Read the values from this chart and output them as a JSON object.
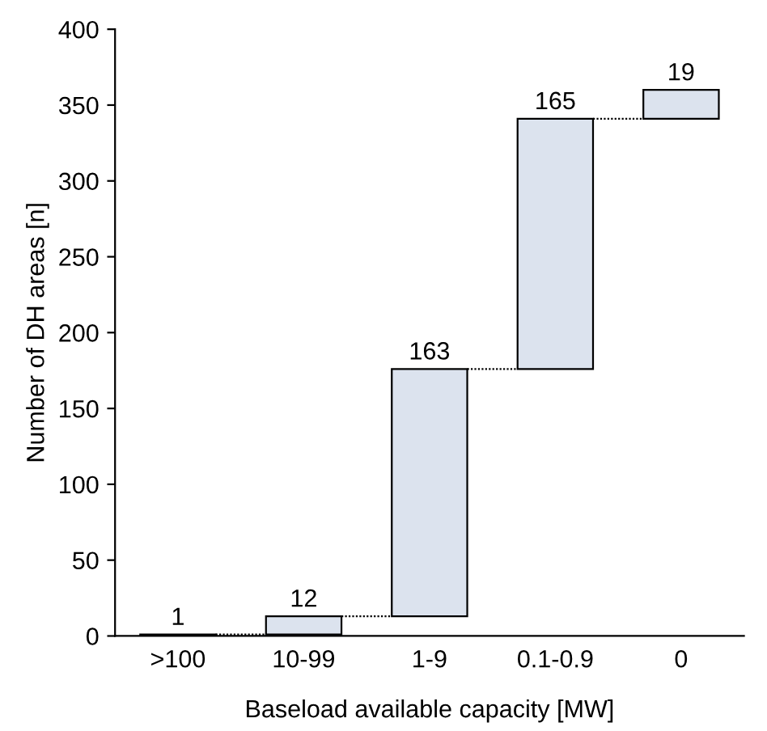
{
  "chart_data": {
    "type": "bar",
    "xlabel": "Baseload available capacity [MW]",
    "ylabel": "Number of DH areas [n]",
    "categories": [
      ">100",
      "10-99",
      "1-9",
      "0.1-0.9",
      "0"
    ],
    "values": [
      1,
      12,
      163,
      165,
      19
    ],
    "base": [
      0,
      1,
      13,
      176,
      341
    ],
    "color": "#dce3ee",
    "ylim": [
      0,
      400
    ],
    "yticks": [
      0,
      50,
      100,
      150,
      200,
      250,
      300,
      350,
      400
    ],
    "data_labels": true,
    "grid": false,
    "legend": false
  }
}
